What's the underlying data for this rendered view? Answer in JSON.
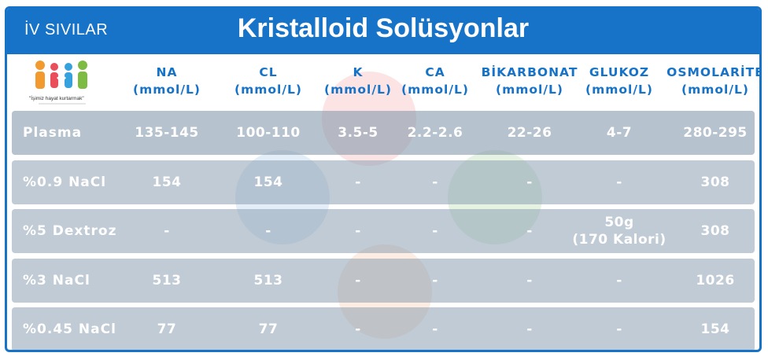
{
  "header": {
    "section": "İV SIVILAR",
    "title": "Kristalloid Solüsyonlar"
  },
  "logo": {
    "tagline": "\"İşimiz hayat kurtarmak\""
  },
  "columns": [
    {
      "name": "NA",
      "unit": "(mmol/L)"
    },
    {
      "name": "CL",
      "unit": "(mmol/L)"
    },
    {
      "name": "K",
      "unit": "(mmol/L)"
    },
    {
      "name": "CA",
      "unit": "(mmol/L)"
    },
    {
      "name": "BİKARBONAT",
      "unit": "(mmol/L)"
    },
    {
      "name": "GLUKOZ",
      "unit": "(mmol/L)"
    },
    {
      "name": "OSMOLARİTE",
      "unit": "(mmol/L)"
    }
  ],
  "rows": [
    {
      "label": "Plasma",
      "cells": [
        "135-145",
        "100-110",
        "3.5-5",
        "2.2-2.6",
        "22-26",
        "4-7",
        "280-295"
      ]
    },
    {
      "label": "%0.9 NaCl",
      "cells": [
        "154",
        "154",
        "-",
        "-",
        "-",
        "-",
        "308"
      ]
    },
    {
      "label": "%5 Dextroz",
      "cells": [
        "-",
        "-",
        "-",
        "-",
        "-",
        "50g\n(170 Kalori)",
        "308"
      ]
    },
    {
      "label": "%3 NaCl",
      "cells": [
        "513",
        "513",
        "-",
        "-",
        "-",
        "-",
        "1026"
      ]
    },
    {
      "label": "%0.45 NaCl",
      "cells": [
        "77",
        "77",
        "-",
        "-",
        "-",
        "-",
        "154"
      ]
    }
  ],
  "colors": {
    "primary": "#1673c8",
    "row": "#8ca0b2",
    "text_on_row": "#ffffff"
  }
}
